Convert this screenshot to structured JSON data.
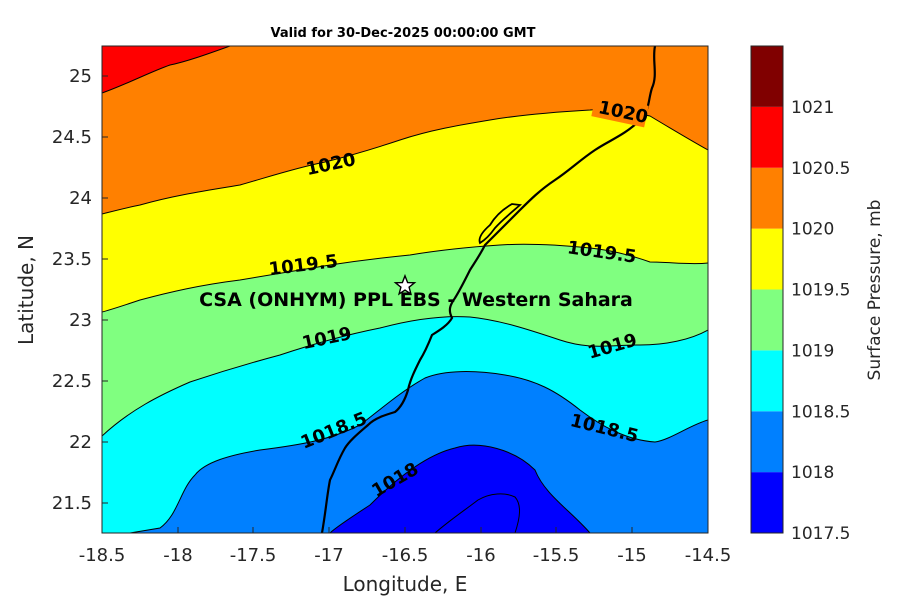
{
  "map": {
    "title": "Valid for 30-Dec-2025 00:00:00 GMT",
    "xlabel": "Longitude, E",
    "ylabel": "Latitude, N",
    "xlim": [
      -18.5,
      -14.5
    ],
    "ylim": [
      21.25,
      25.25
    ],
    "xticks": [
      "-18.5",
      "-18",
      "-17.5",
      "-17",
      "-16.5",
      "-16",
      "-15.5",
      "-15",
      "-14.5"
    ],
    "yticks": [
      "21.5",
      "22",
      "22.5",
      "23",
      "23.5",
      "24",
      "24.5",
      "25"
    ],
    "site": {
      "name": "CSA (ONHYM) PPL EBS - Western Sahara",
      "lon": -16.5,
      "lat": 23.28
    },
    "contour_labels": [
      "1020",
      "1020",
      "1019.5",
      "1019.5",
      "1019",
      "1019",
      "1018.5",
      "1018.5",
      "1018"
    ]
  },
  "colorbar": {
    "label": "Surface Pressure, mb",
    "levels": [
      "1017.5",
      "1018",
      "1018.5",
      "1019",
      "1019.5",
      "1020",
      "1020.5",
      "1021"
    ],
    "colors": [
      "#0000ff",
      "#0080ff",
      "#00ffff",
      "#80ff80",
      "#ffff00",
      "#ff8000",
      "#ff0000",
      "#800000"
    ]
  }
}
